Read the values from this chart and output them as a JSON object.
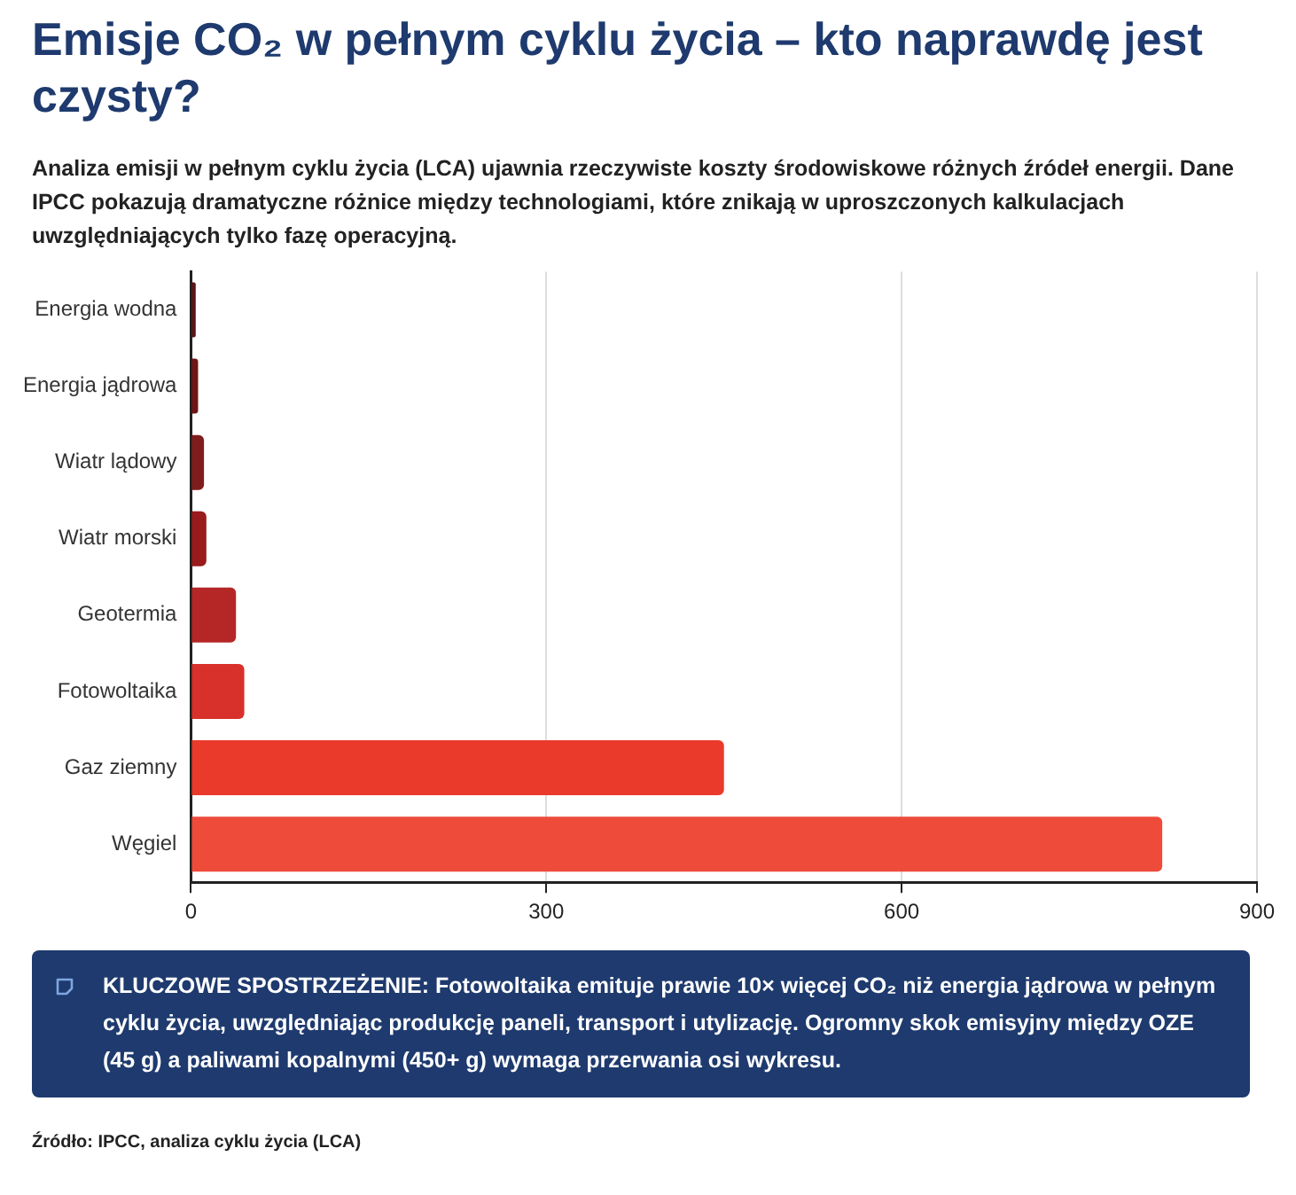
{
  "chart_data": {
    "type": "bar",
    "orientation": "horizontal",
    "title": "Emisje CO₂ w pełnym cyklu życia – kto naprawdę jest czysty?",
    "subtitle": "Analiza emisji w pełnym cyklu życia (LCA) ujawnia rzeczywiste koszty środowiskowe różnych źródeł energii. Dane IPCC pokazują dramatyczne różnice między technologiami, które znikają w uproszczonych kalkulacjach uwzględniających tylko fazę operacyjną.",
    "categories": [
      "Energia wodna",
      "Energia jądrowa",
      "Wiatr lądowy",
      "Wiatr morski",
      "Geotermia",
      "Fotowoltaika",
      "Gaz ziemny",
      "Węgiel"
    ],
    "values": [
      4,
      6,
      11,
      13,
      38,
      45,
      450,
      820
    ],
    "colors": [
      "#5c1414",
      "#6e1616",
      "#7f1d1d",
      "#991b1b",
      "#b52626",
      "#d8302a",
      "#ea3a2c",
      "#ee4b3a"
    ],
    "xlim": [
      0,
      900
    ],
    "xticks": [
      0,
      300,
      600,
      900
    ],
    "grid": "x",
    "legend": false,
    "annotations": [
      "KLUCZOWE SPOSTRZEŻENIE: Fotowoltaika emituje prawie 10× więcej CO₂ niż energia jądrowa w pełnym cyklu życia, uwzględniając produkcję paneli, transport i utylizację. Ogromny skok emisyjny między OZE (45 g) a paliwami kopalnymi (450+ g) wymaga przerwania osi wykresu.",
      "Źródło: IPCC, analiza cyklu życia (LCA)"
    ]
  }
}
